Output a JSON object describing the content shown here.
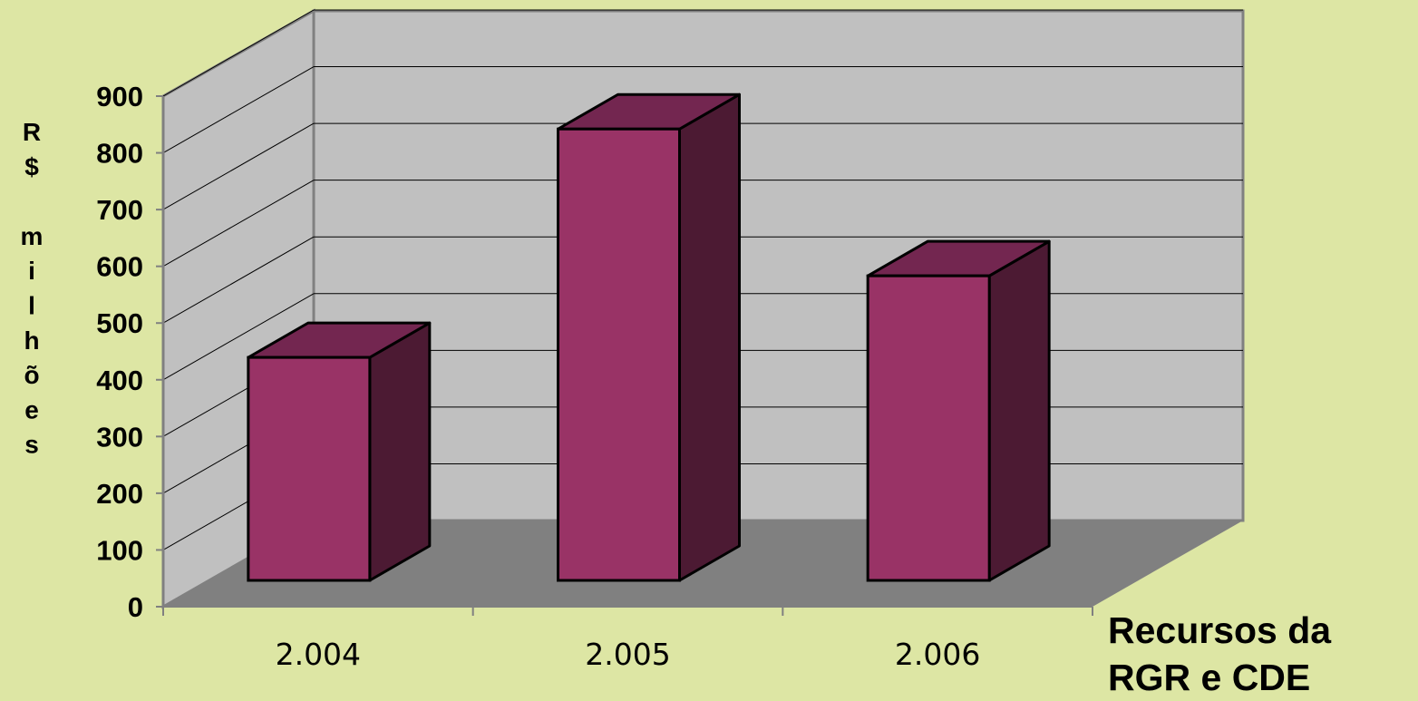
{
  "colors": {
    "background": "#dde6a4",
    "wall": "#c0c0c0",
    "floor": "#808080",
    "bar_front": "#993366",
    "bar_top": "#732650",
    "bar_side": "#4c1a33",
    "gridline": "#000000"
  },
  "chart_data": {
    "type": "bar",
    "title": "",
    "ylabel": "R$ milhões",
    "ylabel_chars": [
      "R",
      "$",
      "",
      "m",
      "i",
      "l",
      "h",
      "õ",
      "e",
      "s"
    ],
    "xlabel": "Recursos da RGR e CDE",
    "xlabel_lines": [
      "Recursos da",
      "RGR e CDE"
    ],
    "categories": [
      "2.004",
      "2.005",
      "2.006"
    ],
    "values": [
      410,
      830,
      560
    ],
    "ylim": [
      0,
      900
    ],
    "yticks": [
      "0",
      "100",
      "200",
      "300",
      "400",
      "500",
      "600",
      "700",
      "800",
      "900"
    ],
    "grid": true,
    "legend": "none",
    "three_d": true
  }
}
